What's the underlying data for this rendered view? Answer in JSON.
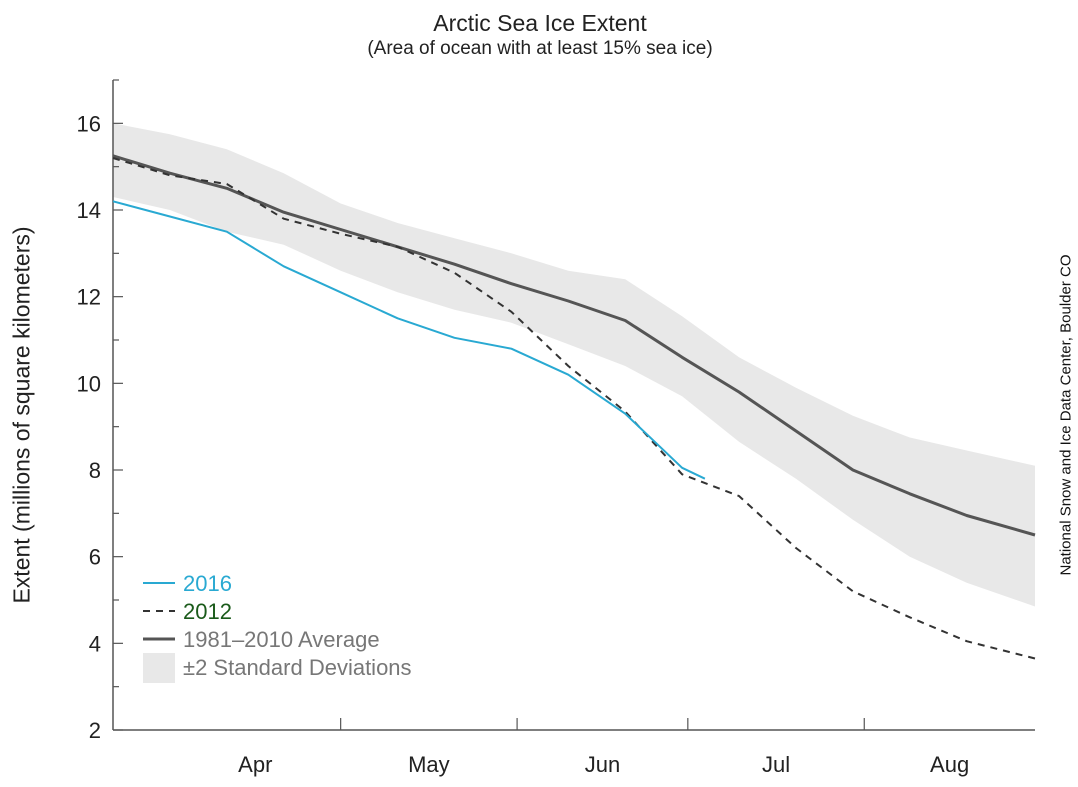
{
  "chart_data": {
    "type": "line",
    "title": "Arctic Sea Ice Extent",
    "subtitle": "(Area of ocean with at least 15% sea ice)",
    "ylabel": "Extent (millions of square kilometers)",
    "xlabel": "",
    "credit": "National Snow and Ice Data Center, Boulder CO",
    "ylim": [
      2,
      17
    ],
    "xlim": [
      "Mar 22",
      "Aug 31"
    ],
    "yticks": [
      2,
      4,
      6,
      8,
      10,
      12,
      14,
      16
    ],
    "months": [
      {
        "label": "Apr",
        "start": "Apr 1"
      },
      {
        "label": "May",
        "start": "May 1"
      },
      {
        "label": "Jun",
        "start": "Jun 1"
      },
      {
        "label": "Jul",
        "start": "Jul 1"
      },
      {
        "label": "Aug",
        "start": "Aug 1"
      }
    ],
    "x": [
      "Mar 22",
      "Apr 1",
      "Apr 11",
      "Apr 21",
      "May 1",
      "May 11",
      "May 21",
      "May 31",
      "Jun 10",
      "Jun 20",
      "Jun 30",
      "Jul 10",
      "Jul 20",
      "Jul 30",
      "Aug 9",
      "Aug 19",
      "Aug 31"
    ],
    "band": {
      "name": "±2 Standard Deviations",
      "color": "#e8e8e8",
      "upper": [
        16.0,
        15.75,
        15.4,
        14.85,
        14.15,
        13.7,
        13.35,
        13.0,
        12.6,
        12.4,
        11.55,
        10.6,
        9.9,
        9.25,
        8.75,
        8.45,
        8.1
      ],
      "lower": [
        14.3,
        14.0,
        13.5,
        13.2,
        12.6,
        12.1,
        11.7,
        11.4,
        10.9,
        10.4,
        9.7,
        8.65,
        7.8,
        6.85,
        6.0,
        5.4,
        4.85
      ]
    },
    "series": [
      {
        "name": "1981–2010 Average",
        "color": "#555555",
        "style": "solid",
        "values": [
          15.25,
          14.85,
          14.5,
          13.95,
          13.55,
          13.15,
          12.75,
          12.3,
          11.9,
          11.45,
          10.6,
          9.8,
          8.9,
          8.0,
          7.45,
          6.95,
          6.5
        ]
      },
      {
        "name": "2012",
        "color": "#333333",
        "style": "dashed",
        "values": [
          15.2,
          14.8,
          14.6,
          13.8,
          13.45,
          13.15,
          12.55,
          11.65,
          10.4,
          9.35,
          7.9,
          7.4,
          6.2,
          5.2,
          4.6,
          4.05,
          3.65
        ],
        "legend_color": "#1a5a1a"
      },
      {
        "name": "2016",
        "color": "#29a9d2",
        "style": "solid",
        "x": [
          "Mar 22",
          "Apr 1",
          "Apr 11",
          "Apr 21",
          "May 1",
          "May 11",
          "May 21",
          "May 31",
          "Jun 10",
          "Jun 20",
          "Jun 30",
          "Jul 4"
        ],
        "values": [
          14.2,
          13.85,
          13.5,
          12.7,
          12.1,
          11.5,
          11.05,
          10.8,
          10.2,
          9.3,
          8.05,
          7.8
        ]
      }
    ],
    "legend": {
      "placement": "bottom-left",
      "entries": [
        {
          "label": "2016",
          "color": "#29a9d2"
        },
        {
          "label": "2012",
          "color": "#1a5a1a"
        },
        {
          "label": "1981–2010 Average",
          "color": "#777777"
        },
        {
          "label": "±2 Standard Deviations",
          "color": "#777777"
        }
      ]
    }
  }
}
